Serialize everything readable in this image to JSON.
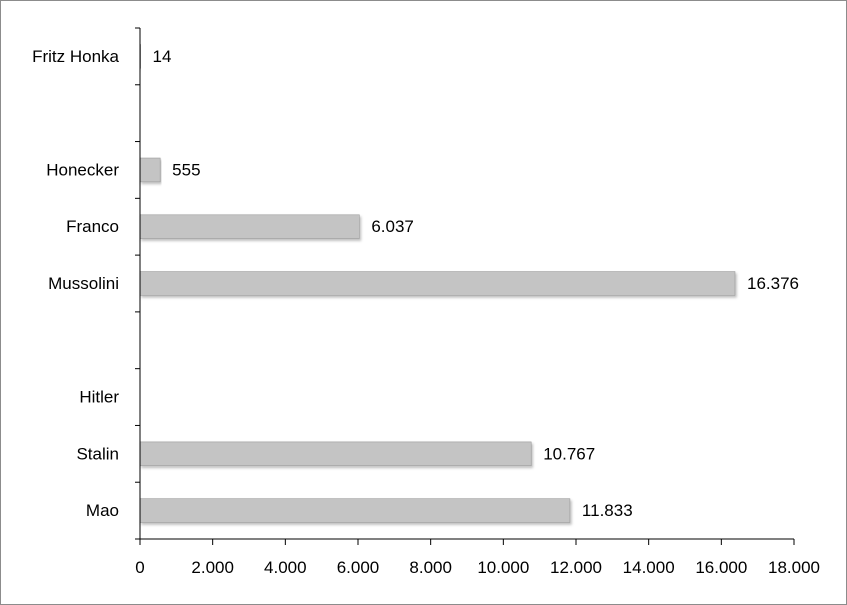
{
  "chart_data": {
    "type": "bar",
    "orientation": "horizontal",
    "categories": [
      "Mao",
      "Stalin",
      "Hitler",
      "",
      "Mussolini",
      "Franco",
      "Honecker",
      "",
      "Fritz Honka"
    ],
    "values": [
      11833,
      10767,
      null,
      null,
      16376,
      6037,
      555,
      null,
      14
    ],
    "value_labels": [
      "11.833",
      "10.767",
      "",
      "",
      "16.376",
      "6.037",
      "555",
      "",
      "14"
    ],
    "xlim": [
      0,
      18000
    ],
    "x_ticks": [
      0,
      2000,
      4000,
      6000,
      8000,
      10000,
      12000,
      14000,
      16000,
      18000
    ],
    "x_tick_labels": [
      "0",
      "2.000",
      "4.000",
      "6.000",
      "8.000",
      "10.000",
      "12.000",
      "14.000",
      "16.000",
      "18.000"
    ],
    "title": "",
    "xlabel": "",
    "ylabel": "",
    "grid": false,
    "legend": "none",
    "bar_color": "#c4c4c4",
    "bar_edge_color": "#9a9a9a",
    "axis_color": "#000000"
  }
}
